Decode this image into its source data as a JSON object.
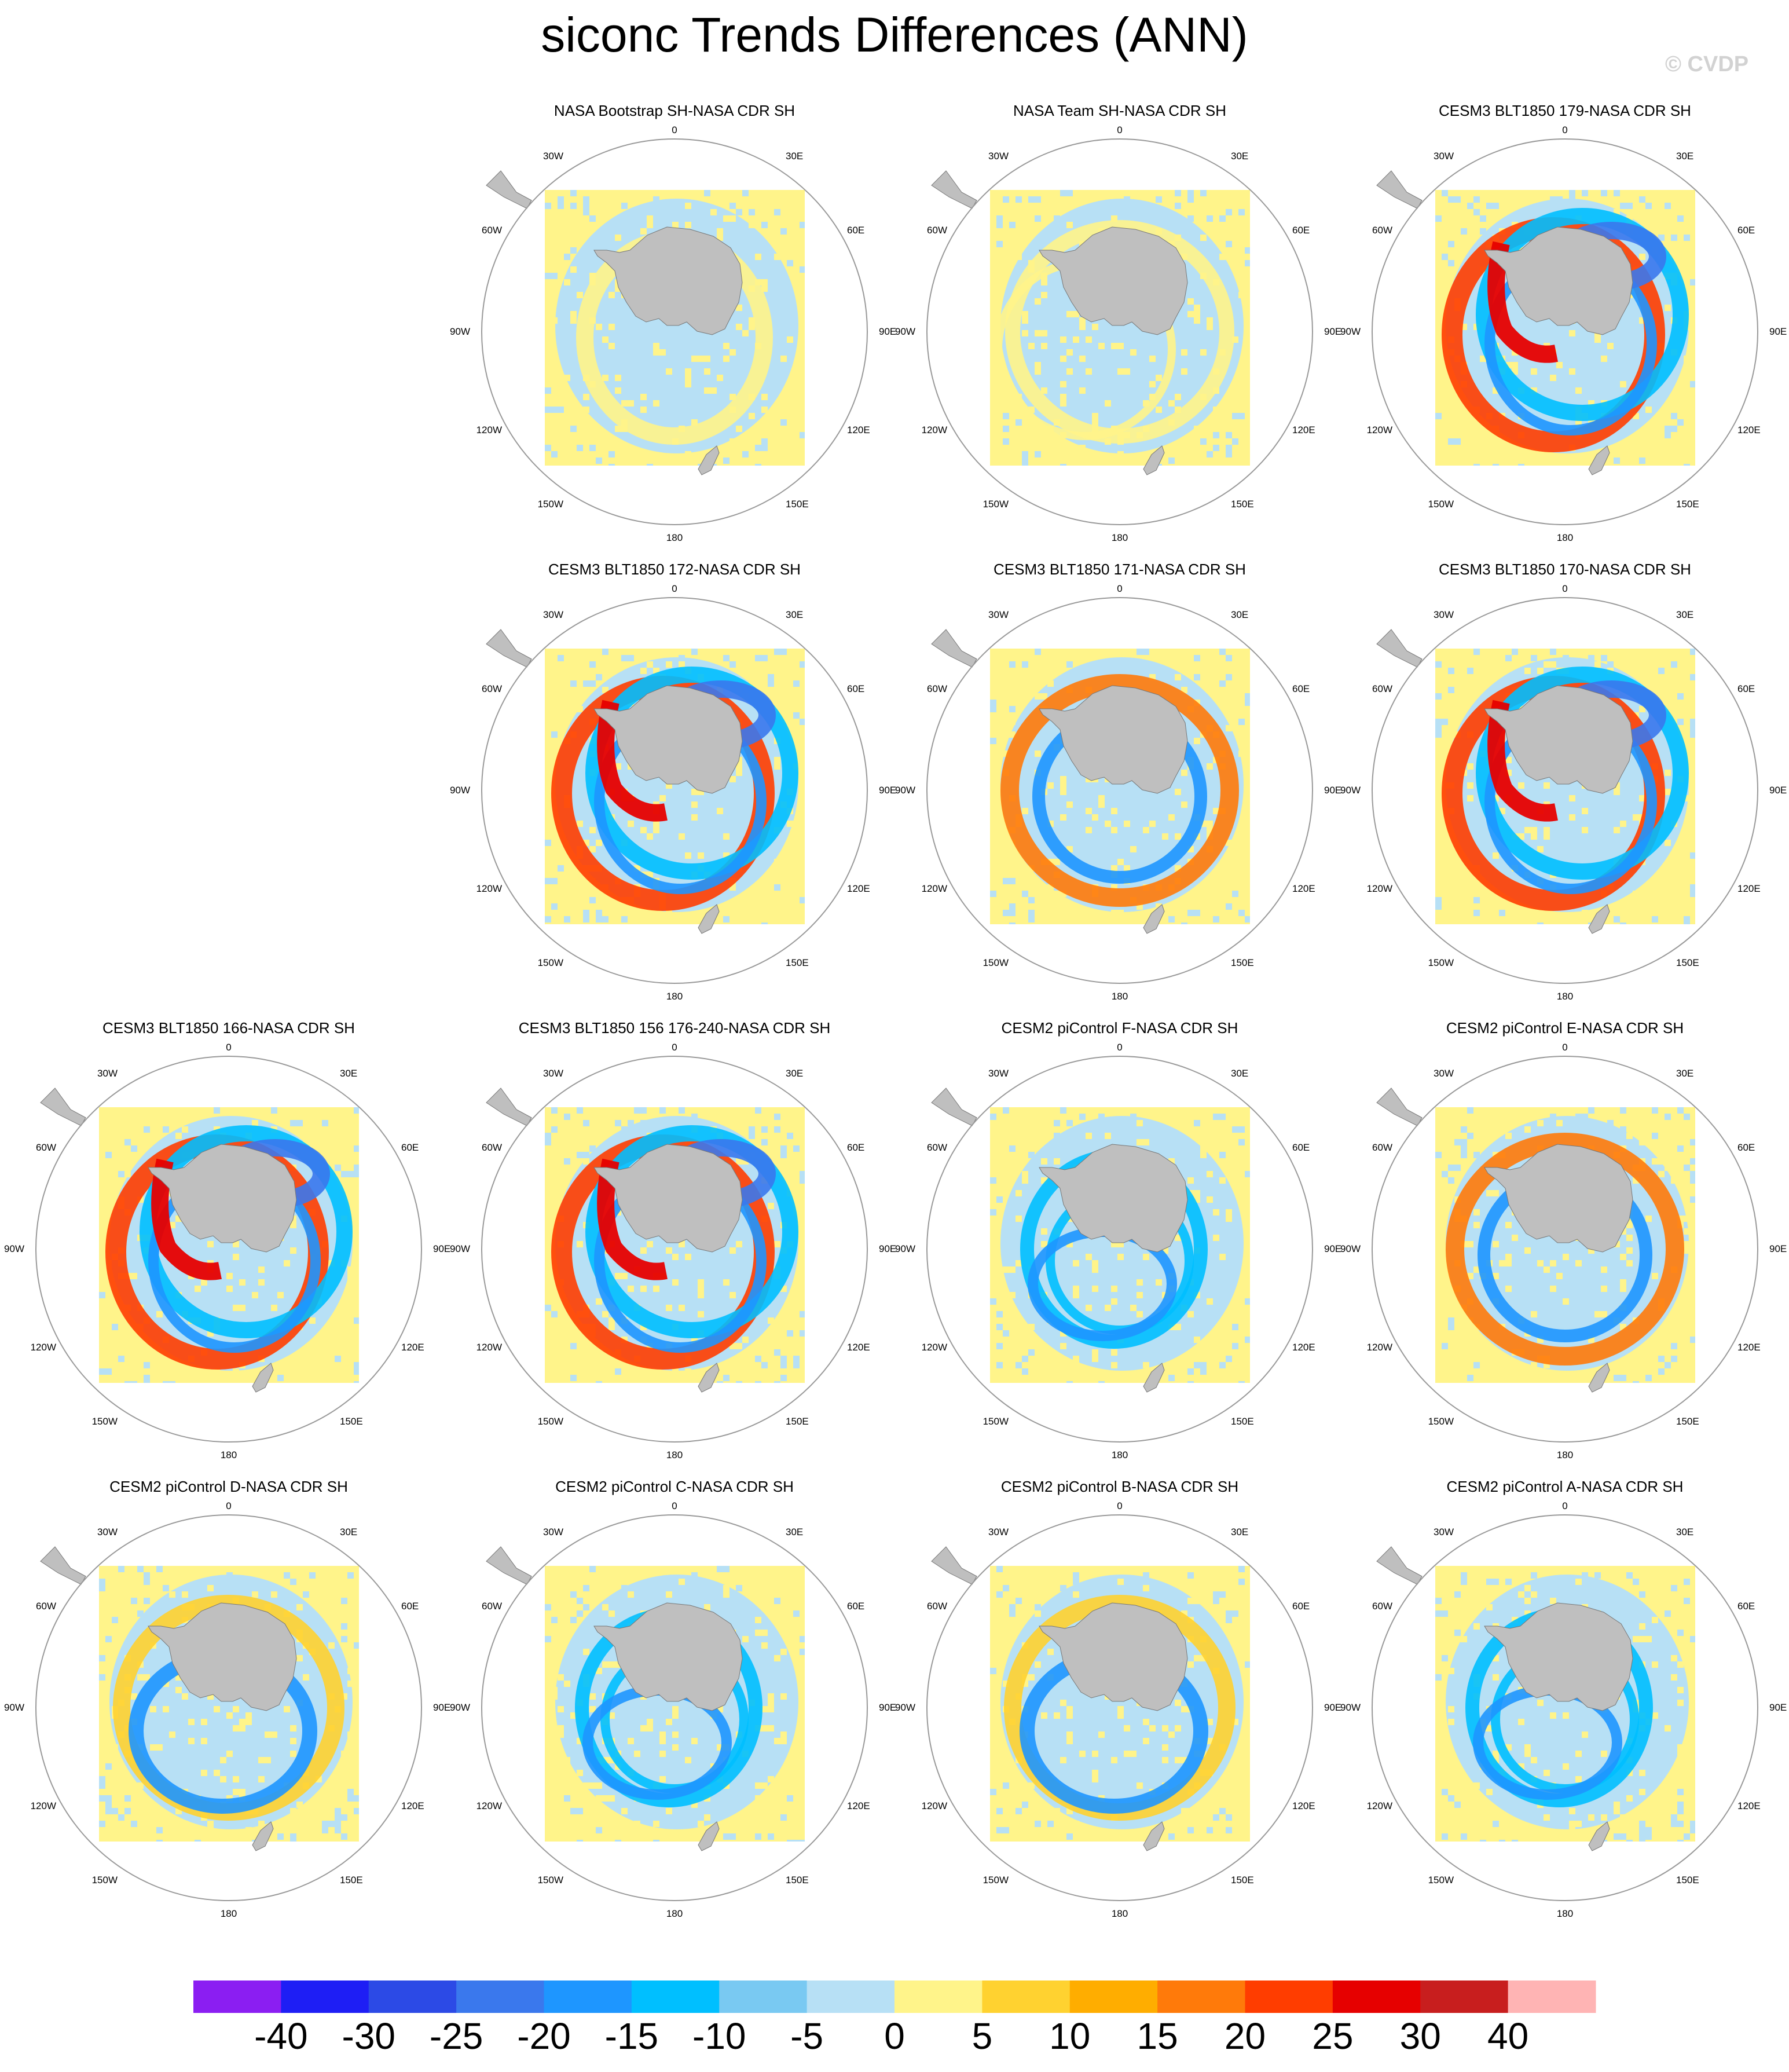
{
  "title": "siconc Trends Differences (ANN)",
  "watermark": "© CVDP",
  "map": {
    "lon_labels": {
      "n": "0",
      "ne": "30E",
      "nw": "30W",
      "e1": "60E",
      "w1": "60W",
      "e": "90E",
      "w": "90W",
      "se1": "120E",
      "sw1": "120W",
      "se": "150E",
      "sw": "150W",
      "s": "180"
    }
  },
  "chart_data": {
    "type": "heatmap",
    "title": "siconc Trends Differences (ANN)",
    "projection": "south polar stereographic",
    "panels": [
      {
        "title": "NASA Bootstrap SH-NASA CDR SH",
        "pattern": "obs-boot"
      },
      {
        "title": "NASA Team SH-NASA CDR SH",
        "pattern": "obs-team"
      },
      {
        "title": "CESM3 BLT1850 179-NASA CDR SH",
        "pattern": "strong"
      },
      {
        "title": "CESM3 BLT1850 172-NASA CDR SH",
        "pattern": "strong"
      },
      {
        "title": "CESM3 BLT1850 171-NASA CDR SH",
        "pattern": "ring"
      },
      {
        "title": "CESM3 BLT1850 170-NASA CDR SH",
        "pattern": "strong"
      },
      {
        "title": "CESM3 BLT1850 166-NASA CDR SH",
        "pattern": "strong"
      },
      {
        "title": "CESM3 BLT1850 156 176-240-NASA CDR SH",
        "pattern": "strong"
      },
      {
        "title": "CESM2 piControl F-NASA CDR SH",
        "pattern": "weak"
      },
      {
        "title": "CESM2 piControl E-NASA CDR SH",
        "pattern": "ring"
      },
      {
        "title": "CESM2 piControl D-NASA CDR SH",
        "pattern": "blue"
      },
      {
        "title": "CESM2 piControl C-NASA CDR SH",
        "pattern": "weak"
      },
      {
        "title": "CESM2 piControl B-NASA CDR SH",
        "pattern": "blue"
      },
      {
        "title": "CESM2 piControl A-NASA CDR SH",
        "pattern": "weak"
      }
    ],
    "colorbar": {
      "labels": [
        "-40",
        "-30",
        "-25",
        "-20",
        "-15",
        "-10",
        "-5",
        "0",
        "5",
        "10",
        "15",
        "20",
        "25",
        "30",
        "40"
      ],
      "colors": [
        "#8b1ef2",
        "#1e1ef5",
        "#2c4ae6",
        "#3a78ed",
        "#1e96ff",
        "#00bfff",
        "#79c9f2",
        "#b7e0f5",
        "#fff48a",
        "#ffd230",
        "#ffad00",
        "#ff7a0a",
        "#ff3d00",
        "#e60000",
        "#c81e1e",
        "#ffb4b4"
      ]
    }
  }
}
